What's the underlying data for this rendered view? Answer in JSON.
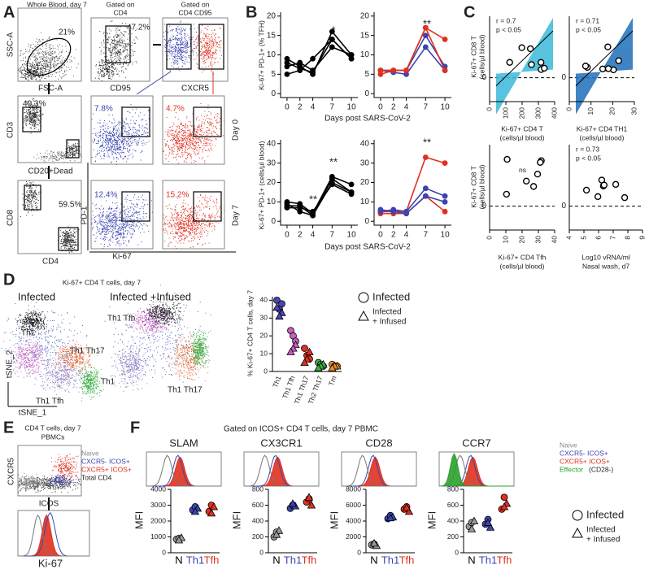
{
  "panel_labels": {
    "a": "A",
    "b": "B",
    "c": "C",
    "d": "D",
    "e": "E",
    "f": "F"
  },
  "a": {
    "title": "Whole Blood, day 7",
    "gate1": [
      "Gated on",
      "CD4"
    ],
    "gate2": [
      "Gated on",
      "CD4 CD95"
    ],
    "ssc": "SSC-A",
    "fsc": "FSC-A",
    "cd95": "CD95",
    "cxcr5": "CXCR5",
    "cd3": "CD3",
    "cd20": "CD20+Dead",
    "cd8": "CD8",
    "cd4": "CD4",
    "pd1": "PD-1",
    "ki67": "Ki-67",
    "day0": "Day 0",
    "day7": "Day 7",
    "pct": [
      "21%",
      "47.2%",
      "40.3%",
      "59.5%",
      "7.8%",
      "4.7%",
      "12.4%",
      "15.2%"
    ]
  },
  "b": {
    "xlabel": [
      "Days post SARS-CoV-2",
      "Days post SARS-CoV-2"
    ],
    "ylabel": [
      "Ki-67+ PD-1+ (% TFH)",
      "Ki-67+ PD-1+ (cells/µl blood)"
    ],
    "stars": [
      "*",
      "*",
      "**",
      "**",
      "**",
      "**"
    ],
    "plots": [
      {
        "x": [
          0,
          2,
          4,
          7,
          10
        ],
        "xlim": [
          -1,
          11
        ],
        "xticks": [
          0,
          2,
          4,
          7,
          10
        ],
        "ylim": [
          -1,
          21
        ],
        "yticks": [
          0,
          5,
          10,
          15,
          20
        ],
        "series": [
          {
            "color": "#000000",
            "values": [
              9,
              7,
              5,
              16,
              10
            ]
          },
          {
            "color": "#000000",
            "values": [
              8,
              6.5,
              5.5,
              14,
              9
            ]
          },
          {
            "color": "#000000",
            "values": [
              7,
              8,
              6,
              12,
              10
            ]
          },
          {
            "color": "#000000",
            "values": [
              5,
              6,
              9,
              14,
              9
            ]
          }
        ]
      },
      {
        "x": [
          0,
          2,
          4,
          7,
          10
        ],
        "xlim": [
          -1,
          11
        ],
        "xticks": [
          0,
          2,
          4,
          7,
          10
        ],
        "ylim": [
          -1,
          21
        ],
        "yticks": [
          0,
          5,
          10,
          15,
          20
        ],
        "series": [
          {
            "color": "#3b45b0",
            "values": [
              6,
              6,
              6,
              15,
              7
            ]
          },
          {
            "color": "#3b45b0",
            "values": [
              6,
              5.5,
              5,
              12,
              6
            ]
          },
          {
            "color": "#e0301e",
            "values": [
              5,
              6,
              6,
              17,
              14
            ]
          },
          {
            "color": "#e0301e",
            "values": [
              6,
              6,
              6,
              17,
              6
            ]
          }
        ]
      },
      {
        "x": [
          0,
          2,
          4,
          7,
          10
        ],
        "xlim": [
          -1,
          11
        ],
        "xticks": [
          0,
          2,
          4,
          7,
          10
        ],
        "ylim": [
          -2,
          42
        ],
        "yticks": [
          0,
          10,
          20,
          30,
          40
        ],
        "series": [
          {
            "color": "#000000",
            "values": [
              8,
              8,
              3,
              20,
              15
            ]
          },
          {
            "color": "#000000",
            "values": [
              10,
              9,
              4,
              23,
              19
            ]
          },
          {
            "color": "#000000",
            "values": [
              9,
              5,
              3,
              22,
              15
            ]
          },
          {
            "color": "#000000",
            "values": [
              7,
              7,
              5,
              19,
              14
            ]
          }
        ]
      },
      {
        "x": [
          0,
          2,
          4,
          7,
          10
        ],
        "xlim": [
          -1,
          11
        ],
        "xticks": [
          0,
          2,
          4,
          7,
          10
        ],
        "ylim": [
          -2,
          42
        ],
        "yticks": [
          0,
          10,
          20,
          30,
          40
        ],
        "series": [
          {
            "color": "#e0301e",
            "values": [
              5,
              5,
              5,
              33,
              30
            ]
          },
          {
            "color": "#e0301e",
            "values": [
              4,
              4,
              4,
              13,
              5
            ]
          },
          {
            "color": "#3b45b0",
            "values": [
              5,
              6,
              5,
              17,
              13
            ]
          },
          {
            "color": "#3b45b0",
            "values": [
              6,
              5,
              4,
              13,
              10
            ]
          }
        ]
      }
    ]
  },
  "c": {
    "ylabel": [
      "Ki-67+ CD8 T",
      "(cells/µl blood)",
      "Ki-67+ CD8 T",
      "(cells/µl blood)"
    ],
    "plots": [
      {
        "xticks": [
          0,
          100,
          200,
          300,
          400
        ],
        "yticks": [
          0
        ],
        "stats": [
          "r = 0.7",
          "p < 0.05"
        ],
        "xlabel": [
          "Ki-67+ CD4 T",
          "(cells/µl blood)"
        ]
      },
      {
        "xticks": [
          0,
          10,
          20,
          30
        ],
        "yticks": [
          0
        ],
        "stats": [
          "r = 0.71",
          "p < 0.05"
        ],
        "xlabel": [
          "Ki-67+ CD4 TH1",
          "(cells/µl blood)"
        ]
      },
      {
        "xticks": [
          0,
          10,
          20,
          30,
          40
        ],
        "yticks": [
          0
        ],
        "stats": [
          "ns"
        ],
        "xlabel": [
          "Ki-67+ CD4 Tfh",
          "(cells/µl blood)"
        ]
      },
      {
        "xticks": [
          4,
          5,
          6,
          7,
          8,
          9
        ],
        "yticks": [
          0
        ],
        "stats": [
          "r = 0.73",
          "p < 0.05"
        ],
        "xlabel": [
          "Log10 vRNA/ml",
          "Nasal wash, d7"
        ]
      }
    ]
  },
  "d": {
    "title": "Ki-67+ CD4 T cells, day 7",
    "group1": "Infected",
    "group2": "Infected +Infused",
    "clusters": [
      "Th1",
      "Th1 Th17",
      "Th1 Tfh",
      "Th1 Tfh",
      "Th1",
      "Th1 Th17"
    ],
    "tsne2": "tSNE_2",
    "tsne1": "tSNE_1",
    "legend": [
      "Infected",
      "Infected",
      "+ Infused"
    ],
    "plot": {
      "ylabel": "% Ki-67+ CD4 T cells, day 7",
      "categories": [
        "Th1",
        "Th1 Tfh",
        "Th1 Th17",
        "Th2 Th17",
        "Tm"
      ],
      "colors": [
        "#4b46b4",
        "#c65fc0",
        "#e0301e",
        "#3fae49",
        "#f08a24"
      ],
      "ylim": [
        0,
        42
      ],
      "yticks": [
        0,
        10,
        20,
        30,
        40
      ],
      "infected": [
        [
          40,
          35,
          38
        ],
        [
          23,
          20,
          17
        ],
        [
          13,
          9,
          7
        ],
        [
          5,
          4,
          3
        ],
        [
          4,
          3,
          3
        ]
      ],
      "infused": [
        [
          33,
          31,
          36
        ],
        [
          15,
          13,
          11
        ],
        [
          11,
          7,
          5
        ],
        [
          4,
          3,
          2
        ],
        [
          3,
          3,
          2
        ]
      ]
    }
  },
  "e": {
    "title": [
      "CD4 T cells, day 7",
      "PBMCs"
    ],
    "cxcr5": "CXCR5",
    "icos": "ICOS",
    "ki67": "Ki-67",
    "legend": [
      "Naive",
      "CXCR5- ICOS+",
      "CXCR5+ ICOS+",
      "Total CD4"
    ]
  },
  "f": {
    "title": "Gated on ICOS+ CD4 T cells, day 7 PBMC",
    "ylabel": "MFI",
    "legend": [
      "Naive",
      "CXCR5- ICOS+",
      "CXCR5+ ICOS+",
      "Effector",
      "(CD28-)"
    ],
    "groups": [
      "Infected",
      "Infected",
      "+ Infused"
    ],
    "colors": [
      "#999999",
      "#3b45b0",
      "#e0301e"
    ],
    "label_colors": [
      "#000000",
      "#3b45b0",
      "#e0301e"
    ],
    "plots": [
      {
        "title": "SLAM",
        "categories": [
          "N",
          "Th1",
          "Tfh"
        ],
        "ylim": [
          0,
          4000
        ],
        "yticks": [
          0,
          1000,
          2000,
          3000,
          4000
        ],
        "infected": [
          [
            850,
            900
          ],
          [
            2700,
            2900
          ],
          [
            2600,
            3000
          ]
        ],
        "infused": [
          [
            950,
            800
          ],
          [
            2800,
            2600
          ],
          [
            2900,
            2500
          ]
        ]
      },
      {
        "title": "CX3CR1",
        "categories": [
          "N",
          "Th1",
          "Tfh"
        ],
        "ylim": [
          0,
          800
        ],
        "yticks": [
          0,
          200,
          400,
          600,
          800
        ],
        "infected": [
          [
            200,
            260
          ],
          [
            560,
            600
          ],
          [
            640,
            680
          ]
        ],
        "infused": [
          [
            280,
            230
          ],
          [
            590,
            620
          ],
          [
            600,
            700
          ]
        ]
      },
      {
        "title": "CD28",
        "categories": [
          "N",
          "Th1",
          "Tfh"
        ],
        "ylim": [
          0,
          8000
        ],
        "yticks": [
          0,
          2000,
          4000,
          6000,
          8000
        ],
        "infected": [
          [
            1000,
            1100
          ],
          [
            4300,
            4700
          ],
          [
            5500,
            5800
          ]
        ],
        "infused": [
          [
            900,
            1200
          ],
          [
            4500,
            4400
          ],
          [
            5200,
            5700
          ]
        ]
      },
      {
        "title": "CCR7",
        "categories": [
          "N",
          "Th1",
          "Tfh"
        ],
        "ylim": [
          0,
          800
        ],
        "yticks": [
          0,
          200,
          400,
          600,
          800
        ],
        "infected": [
          [
            330,
            380
          ],
          [
            360,
            420
          ],
          [
            550,
            700
          ]
        ],
        "infused": [
          [
            400,
            300
          ],
          [
            320,
            380
          ],
          [
            620,
            580
          ]
        ]
      }
    ]
  }
}
